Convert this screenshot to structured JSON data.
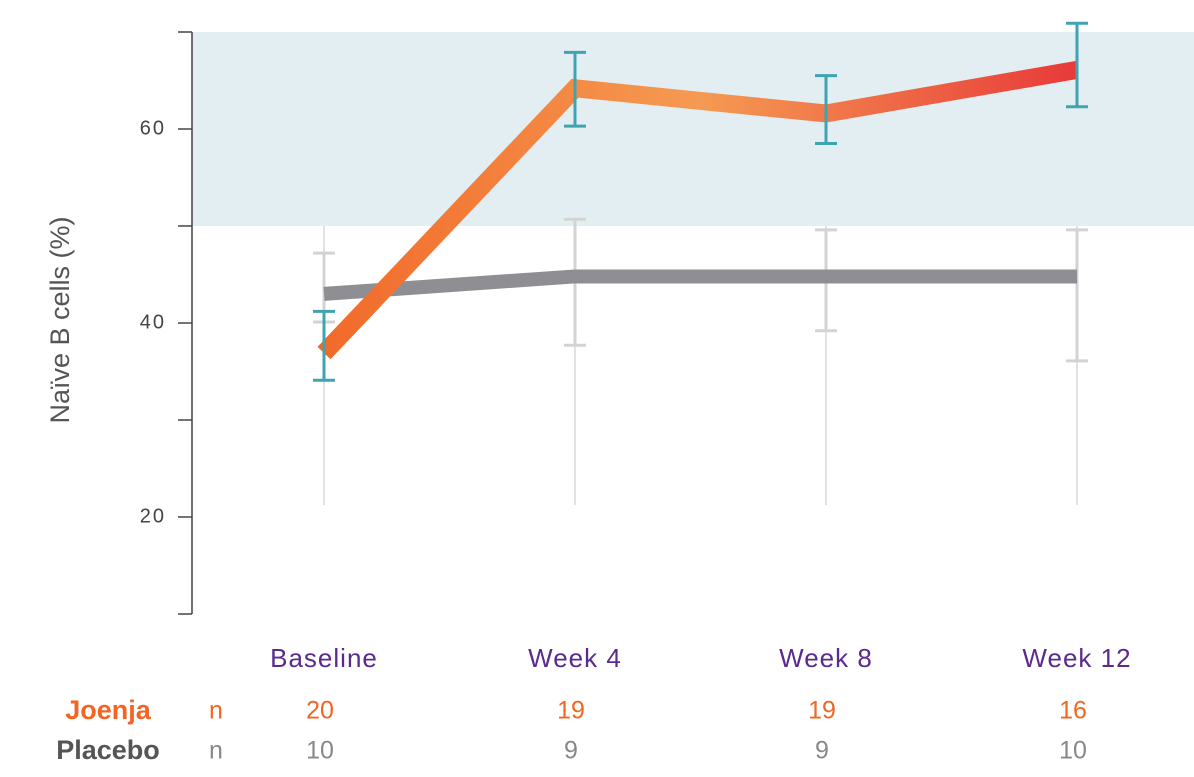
{
  "chart_data": {
    "type": "line",
    "y_label": "Naïve B cells (%)",
    "categories": [
      "Baseline",
      "Week 4",
      "Week 8",
      "Week 12"
    ],
    "ylim": [
      10,
      70
    ],
    "yticks": [
      20,
      40,
      60
    ],
    "minor_yticks": [
      10,
      30,
      50,
      70
    ],
    "reference_band": [
      50,
      70
    ],
    "reference_band_color": "#e3eef3",
    "series": [
      {
        "name": "Placebo",
        "color": "#8e8e93",
        "error_color": "#d3d3d3",
        "values": [
          43.0,
          44.8,
          44.8,
          44.8
        ],
        "lower": [
          40.1,
          37.7,
          39.2,
          36.1
        ],
        "upper": [
          47.2,
          50.7,
          49.6,
          49.6
        ]
      },
      {
        "name": "Joenja",
        "color": "#f26a2a",
        "gradient": [
          "#f26a2a",
          "#f59a52",
          "#e83a3a"
        ],
        "error_color": "#3fa3b0",
        "values": [
          36.9,
          64.2,
          61.6,
          66.1
        ],
        "lower": [
          34.1,
          60.3,
          58.5,
          62.3
        ],
        "upper": [
          41.2,
          67.9,
          65.5,
          70.9
        ]
      }
    ],
    "n_rows": [
      {
        "name": "Joenja",
        "label": "n",
        "color": "#f26522",
        "values": [
          20,
          19,
          19,
          16
        ]
      },
      {
        "name": "Placebo",
        "label": "n",
        "color": "#555555",
        "values": [
          10,
          9,
          9,
          10
        ]
      }
    ]
  }
}
